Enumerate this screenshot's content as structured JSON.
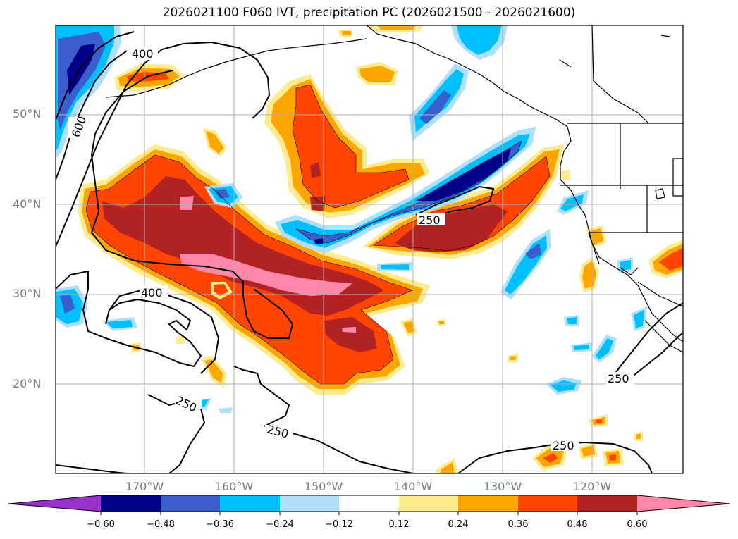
{
  "title": "2026021100 F060 IVT, precipitation PC (2026021500 - 2026021600)",
  "lat_ticks": [
    "50°N",
    "40°N",
    "30°N",
    "20°N"
  ],
  "lon_ticks": [
    "170°W",
    "160°W",
    "150°W",
    "140°W",
    "130°W",
    "120°W"
  ],
  "contour_labels": [
    "400",
    "600",
    "400",
    "250",
    "250",
    "250",
    "250",
    "250"
  ],
  "colorbar": {
    "colors": [
      "#9932cc",
      "#00008b",
      "#3a5fcd",
      "#00bfff",
      "#afe0fa",
      "#ffffff",
      "#fdeb8f",
      "#ffa500",
      "#ff4500",
      "#b22222",
      "#ff88aa"
    ],
    "ticks": [
      "−0.60",
      "−0.48",
      "−0.36",
      "−0.24",
      "−0.12",
      "0.12",
      "0.24",
      "0.36",
      "0.48",
      "0.60"
    ]
  },
  "shading_colors": {
    "light_yellow": "#fdeb8f",
    "orange": "#ffa500",
    "red_orange": "#ff4500",
    "dark_red": "#b22222",
    "pink": "#ff88aa",
    "light_blue": "#afe0fa",
    "cyan": "#00bfff",
    "blue": "#3a5fcd",
    "navy": "#00008b"
  }
}
